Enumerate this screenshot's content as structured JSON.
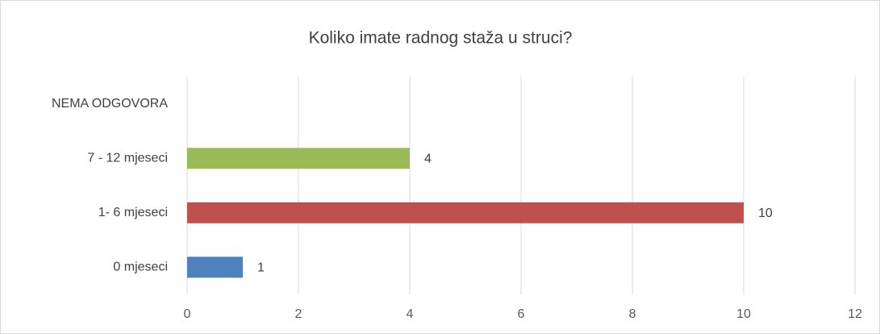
{
  "chart_data": {
    "type": "hbar",
    "title": "Koliko imate radnog staža u struci?",
    "categories": [
      "0 mjeseci",
      "1- 6 mjeseci",
      "7 - 12 mjeseci",
      "NEMA ODGOVORA"
    ],
    "values": [
      1,
      10,
      4,
      null
    ],
    "colors": [
      "#4f81bd",
      "#c0504d",
      "#9bbb59"
    ],
    "xlim": [
      0,
      12
    ],
    "xticks": [
      0,
      2,
      4,
      6,
      8,
      10,
      12
    ],
    "grid": true
  }
}
